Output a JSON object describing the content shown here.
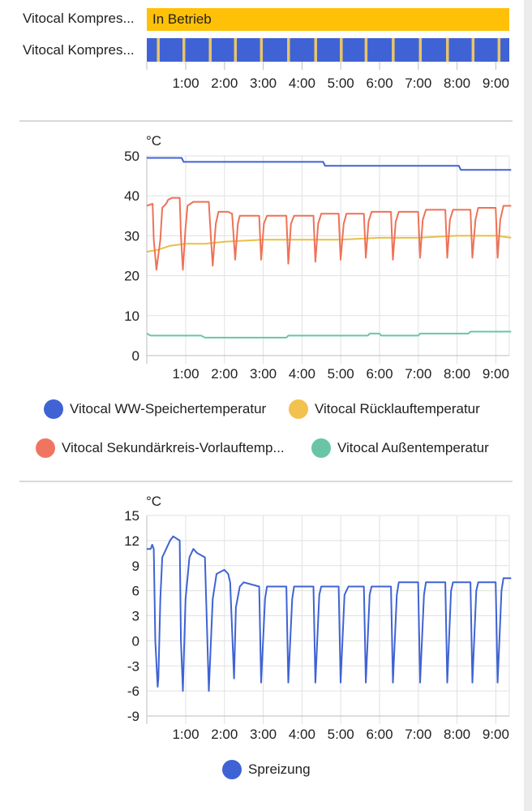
{
  "timeline": {
    "rows": [
      {
        "label": "Vitocal Kompres...",
        "bar_text": "In Betrieb",
        "color": "#ffc107"
      },
      {
        "label": "Vitocal Kompres...",
        "color": "#3f63d4",
        "accent": "#e9c46a"
      }
    ],
    "x_ticks": [
      "1:00",
      "2:00",
      "3:00",
      "4:00",
      "5:00",
      "6:00",
      "7:00",
      "8:00",
      "9:00"
    ]
  },
  "chart_data": [
    {
      "type": "line",
      "unit": "°C",
      "ylim": [
        0,
        50
      ],
      "y_ticks": [
        0,
        10,
        20,
        30,
        40,
        50
      ],
      "x_ticks": [
        "1:00",
        "2:00",
        "3:00",
        "4:00",
        "5:00",
        "6:00",
        "7:00",
        "8:00",
        "9:00"
      ],
      "xlim_hours": [
        0,
        9.4
      ],
      "grid": true,
      "legend_position": "bottom",
      "series": [
        {
          "name": "Vitocal WW-Speichertemperatur",
          "color": "#3f63d4",
          "points": [
            [
              0,
              49.5
            ],
            [
              0.9,
              49.5
            ],
            [
              0.95,
              48.5
            ],
            [
              4.55,
              48.5
            ],
            [
              4.6,
              47.5
            ],
            [
              8.05,
              47.5
            ],
            [
              8.1,
              46.5
            ],
            [
              9.4,
              46.5
            ]
          ]
        },
        {
          "name": "Vitocal Rücklauftemperatur",
          "color": "#e9c046",
          "points": [
            [
              0,
              26
            ],
            [
              0.3,
              26.5
            ],
            [
              0.6,
              27.5
            ],
            [
              1.0,
              28
            ],
            [
              1.5,
              28
            ],
            [
              2.0,
              28.5
            ],
            [
              3.0,
              29
            ],
            [
              4.0,
              29
            ],
            [
              5.0,
              29
            ],
            [
              6.0,
              29.5
            ],
            [
              7.0,
              29.5
            ],
            [
              8.0,
              30
            ],
            [
              9.0,
              30
            ],
            [
              9.4,
              29.5
            ]
          ]
        },
        {
          "name": "Vitocal Sekundärkreis-Vorlauftemp...",
          "color": "#ee7257",
          "points": [
            [
              0,
              37.5
            ],
            [
              0.15,
              38
            ],
            [
              0.18,
              29
            ],
            [
              0.25,
              21.5
            ],
            [
              0.35,
              29
            ],
            [
              0.4,
              37
            ],
            [
              0.5,
              38
            ],
            [
              0.55,
              39
            ],
            [
              0.65,
              39.5
            ],
            [
              0.85,
              39.5
            ],
            [
              0.88,
              30
            ],
            [
              0.93,
              21.5
            ],
            [
              1.0,
              32
            ],
            [
              1.05,
              37.5
            ],
            [
              1.2,
              38.5
            ],
            [
              1.6,
              38.5
            ],
            [
              1.65,
              30
            ],
            [
              1.7,
              22.5
            ],
            [
              1.78,
              33
            ],
            [
              1.85,
              36
            ],
            [
              2.1,
              36
            ],
            [
              2.2,
              35.5
            ],
            [
              2.28,
              24
            ],
            [
              2.35,
              33
            ],
            [
              2.4,
              35
            ],
            [
              2.9,
              35
            ],
            [
              2.95,
              24
            ],
            [
              3.02,
              33
            ],
            [
              3.1,
              35
            ],
            [
              3.6,
              35
            ],
            [
              3.65,
              23
            ],
            [
              3.72,
              33
            ],
            [
              3.8,
              35
            ],
            [
              4.3,
              35
            ],
            [
              4.35,
              23.5
            ],
            [
              4.42,
              33
            ],
            [
              4.5,
              35.5
            ],
            [
              4.95,
              35.5
            ],
            [
              5.0,
              24
            ],
            [
              5.08,
              33
            ],
            [
              5.15,
              35.5
            ],
            [
              5.6,
              35.5
            ],
            [
              5.65,
              24.5
            ],
            [
              5.72,
              33.5
            ],
            [
              5.8,
              36
            ],
            [
              6.3,
              36
            ],
            [
              6.35,
              24
            ],
            [
              6.42,
              33.5
            ],
            [
              6.5,
              36
            ],
            [
              7.0,
              36
            ],
            [
              7.05,
              24.5
            ],
            [
              7.12,
              34
            ],
            [
              7.2,
              36.5
            ],
            [
              7.7,
              36.5
            ],
            [
              7.75,
              24.5
            ],
            [
              7.82,
              34
            ],
            [
              7.9,
              36.5
            ],
            [
              8.35,
              36.5
            ],
            [
              8.4,
              24.5
            ],
            [
              8.48,
              34
            ],
            [
              8.55,
              37
            ],
            [
              9.0,
              37
            ],
            [
              9.05,
              24.5
            ],
            [
              9.12,
              34
            ],
            [
              9.2,
              37.5
            ],
            [
              9.4,
              37.5
            ]
          ]
        },
        {
          "name": "Vitocal Außentemperatur",
          "color": "#6ac5a8",
          "points": [
            [
              0,
              5.5
            ],
            [
              0.1,
              5
            ],
            [
              1.4,
              5
            ],
            [
              1.5,
              4.5
            ],
            [
              3.6,
              4.5
            ],
            [
              3.65,
              5
            ],
            [
              5.7,
              5
            ],
            [
              5.75,
              5.5
            ],
            [
              6.0,
              5.5
            ],
            [
              6.05,
              5
            ],
            [
              7.0,
              5
            ],
            [
              7.05,
              5.5
            ],
            [
              8.3,
              5.5
            ],
            [
              8.35,
              6
            ],
            [
              9.4,
              6
            ]
          ]
        }
      ]
    },
    {
      "type": "line",
      "unit": "°C",
      "ylim": [
        -9,
        15
      ],
      "y_ticks": [
        -9,
        -6,
        -3,
        0,
        3,
        6,
        9,
        12,
        15
      ],
      "x_ticks": [
        "1:00",
        "2:00",
        "3:00",
        "4:00",
        "5:00",
        "6:00",
        "7:00",
        "8:00",
        "9:00"
      ],
      "xlim_hours": [
        0,
        9.4
      ],
      "grid": true,
      "legend_position": "bottom",
      "series": [
        {
          "name": "Spreizung",
          "color": "#3f63d4",
          "points": [
            [
              0,
              11
            ],
            [
              0.1,
              11
            ],
            [
              0.14,
              11.5
            ],
            [
              0.18,
              11
            ],
            [
              0.22,
              0
            ],
            [
              0.28,
              -5.5
            ],
            [
              0.3,
              -4.5
            ],
            [
              0.35,
              5
            ],
            [
              0.4,
              10
            ],
            [
              0.5,
              11
            ],
            [
              0.6,
              12
            ],
            [
              0.68,
              12.5
            ],
            [
              0.85,
              12
            ],
            [
              0.88,
              0
            ],
            [
              0.93,
              -6
            ],
            [
              1.0,
              5
            ],
            [
              1.1,
              10
            ],
            [
              1.2,
              11
            ],
            [
              1.3,
              10.5
            ],
            [
              1.5,
              10
            ],
            [
              1.6,
              -6
            ],
            [
              1.7,
              5
            ],
            [
              1.8,
              8
            ],
            [
              2.0,
              8.5
            ],
            [
              2.1,
              8
            ],
            [
              2.15,
              7
            ],
            [
              2.25,
              -4.5
            ],
            [
              2.3,
              4
            ],
            [
              2.4,
              6.5
            ],
            [
              2.5,
              7
            ],
            [
              2.9,
              6.5
            ],
            [
              2.95,
              -5
            ],
            [
              3.05,
              5
            ],
            [
              3.1,
              6.5
            ],
            [
              3.6,
              6.5
            ],
            [
              3.65,
              -5
            ],
            [
              3.75,
              5
            ],
            [
              3.8,
              6.5
            ],
            [
              4.3,
              6.5
            ],
            [
              4.35,
              -5
            ],
            [
              4.45,
              5.5
            ],
            [
              4.5,
              6.5
            ],
            [
              4.95,
              6.5
            ],
            [
              5.0,
              -5
            ],
            [
              5.1,
              5.5
            ],
            [
              5.2,
              6.5
            ],
            [
              5.6,
              6.5
            ],
            [
              5.65,
              -5
            ],
            [
              5.75,
              5.5
            ],
            [
              5.8,
              6.5
            ],
            [
              6.3,
              6.5
            ],
            [
              6.35,
              -5
            ],
            [
              6.45,
              5.5
            ],
            [
              6.5,
              7
            ],
            [
              7.0,
              7
            ],
            [
              7.05,
              -5
            ],
            [
              7.15,
              5.5
            ],
            [
              7.2,
              7
            ],
            [
              7.7,
              7
            ],
            [
              7.75,
              -5
            ],
            [
              7.85,
              6
            ],
            [
              7.9,
              7
            ],
            [
              8.35,
              7
            ],
            [
              8.4,
              -5
            ],
            [
              8.5,
              6
            ],
            [
              8.55,
              7
            ],
            [
              9.0,
              7
            ],
            [
              9.05,
              -5
            ],
            [
              9.15,
              6
            ],
            [
              9.2,
              7.5
            ],
            [
              9.4,
              7.5
            ]
          ]
        }
      ]
    }
  ]
}
